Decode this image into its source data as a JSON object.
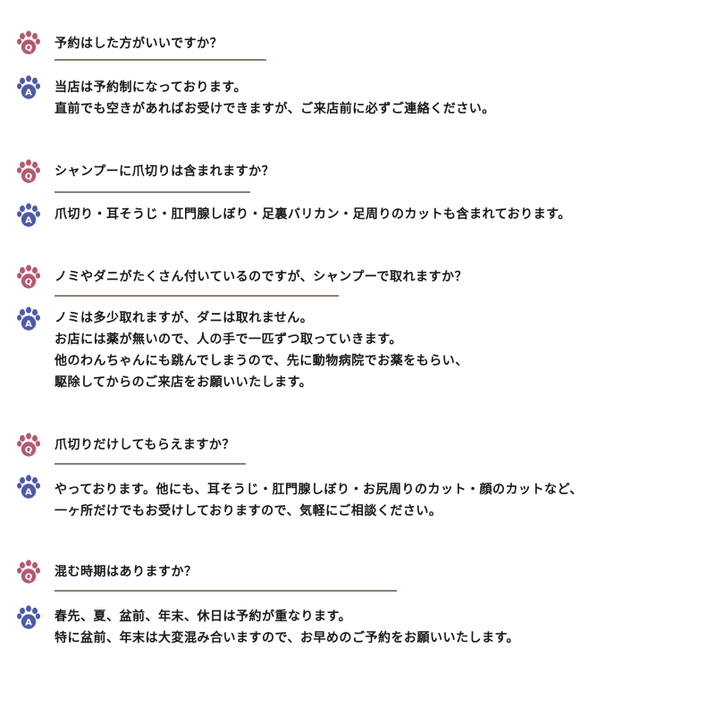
{
  "colors": {
    "question_paw": "#b25b70",
    "answer_paw": "#4e5aa8",
    "underline": "#8a7f73",
    "text": "#1a1a1a"
  },
  "icons": {
    "question": "paw-q-icon",
    "answer": "paw-a-icon"
  },
  "faq": [
    {
      "question": "予約はした方がいいですか？",
      "answer": [
        "当店は予約制になっております。",
        "直前でも空きがあればお受けできますが、ご来店前に必ずご連絡ください。"
      ]
    },
    {
      "question": "シャンプーに爪切りは含まれますか？",
      "answer": [
        "爪切り・耳そうじ・肛門腺しぼり・足裏バリカン・足周りのカットも含まれております。"
      ]
    },
    {
      "question": "ノミやダニがたくさん付いているのですが、シャンプーで取れますか？",
      "answer": [
        "ノミは多少取れますが、ダニは取れません。",
        "お店には薬が無いので、人の手で一匹ずつ取っていきます。",
        "他のわんちゃんにも跳んでしまうので、先に動物病院でお薬をもらい、",
        "駆除してからのご来店をお願いいたします。"
      ]
    },
    {
      "question": "爪切りだけしてもらえますか？",
      "answer": [
        "やっております。他にも、耳そうじ・肛門腺しぼり・お尻周りのカット・顔のカットなど、",
        "一ヶ所だけでもお受けしておりますので、気軽にご相談ください。"
      ]
    },
    {
      "question": "混む時期はありますか？",
      "answer": [
        "春先、夏、盆前、年末、休日は予約が重なります。",
        "特に盆前、年末は大変混み合いますので、お早めのご予約をお願いいたします。"
      ]
    }
  ]
}
